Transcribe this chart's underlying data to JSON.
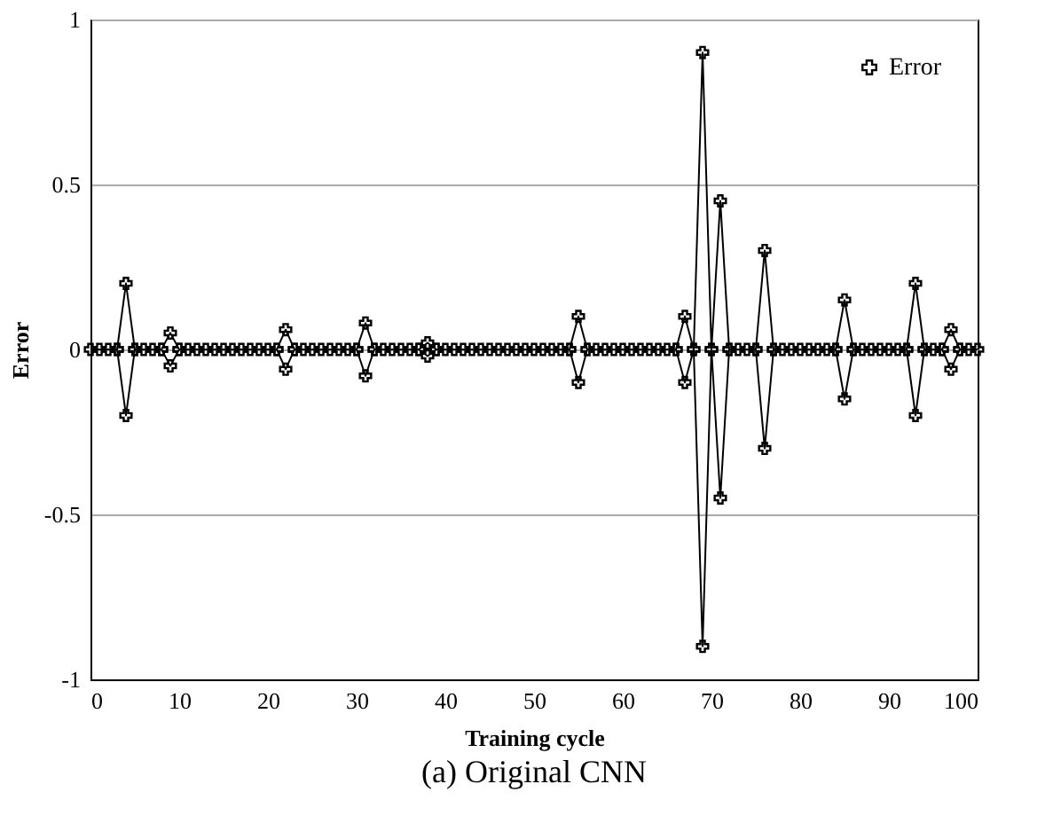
{
  "chart_data": {
    "type": "line",
    "title": "(a) Original CNN",
    "xlabel": "Training cycle",
    "ylabel": "Error",
    "x": [
      0,
      1,
      2,
      3,
      4,
      5,
      6,
      7,
      8,
      9,
      10,
      11,
      12,
      13,
      14,
      15,
      16,
      17,
      18,
      19,
      20,
      21,
      22,
      23,
      24,
      25,
      26,
      27,
      28,
      29,
      30,
      31,
      32,
      33,
      34,
      35,
      36,
      37,
      38,
      39,
      40,
      41,
      42,
      43,
      44,
      45,
      46,
      47,
      48,
      49,
      50,
      51,
      52,
      53,
      54,
      55,
      56,
      57,
      58,
      59,
      60,
      61,
      62,
      63,
      64,
      65,
      66,
      67,
      68,
      69,
      70,
      71,
      72,
      73,
      74,
      75,
      76,
      77,
      78,
      79,
      80,
      81,
      82,
      83,
      84,
      85,
      86,
      87,
      88,
      89,
      90,
      91,
      92,
      93,
      94,
      95,
      96,
      97,
      98,
      99,
      100
    ],
    "series": [
      {
        "name": "Error",
        "color": "#000000",
        "values": [
          0,
          0,
          0,
          0,
          0.2,
          0,
          0,
          0,
          0,
          0.05,
          0,
          0,
          0,
          0,
          0,
          0,
          0,
          0,
          0,
          0,
          0,
          0,
          0.06,
          0,
          0,
          0,
          0,
          0,
          0,
          0,
          0,
          0.08,
          0,
          0,
          0,
          0,
          0,
          0,
          0.02,
          0,
          0,
          0,
          0,
          0,
          0,
          0,
          0,
          0,
          0,
          0,
          0,
          0,
          0,
          0,
          0,
          0.1,
          0,
          0,
          0,
          0,
          0,
          0,
          0,
          0,
          0,
          0,
          0,
          0.1,
          0,
          0.9,
          0,
          0.45,
          0,
          0,
          0,
          0,
          0.3,
          0,
          0,
          0,
          0,
          0,
          0,
          0,
          0,
          0.15,
          0,
          0,
          0,
          0,
          0,
          0,
          0,
          0.2,
          0,
          0,
          0,
          0.06,
          0,
          0,
          0
        ]
      },
      {
        "color": "#000000",
        "values": [
          null,
          null,
          null,
          0,
          -0.2,
          0,
          null,
          null,
          0,
          -0.05,
          0,
          null,
          null,
          null,
          null,
          null,
          null,
          null,
          null,
          null,
          null,
          0,
          -0.06,
          0,
          null,
          null,
          null,
          null,
          null,
          null,
          0,
          -0.08,
          0,
          null,
          null,
          null,
          null,
          0,
          -0.02,
          0,
          null,
          null,
          null,
          null,
          null,
          null,
          null,
          null,
          null,
          null,
          null,
          null,
          null,
          null,
          0,
          -0.1,
          0,
          null,
          null,
          null,
          null,
          null,
          null,
          null,
          null,
          null,
          0,
          -0.1,
          0,
          -0.9,
          0,
          -0.45,
          0,
          null,
          null,
          0,
          -0.3,
          0,
          null,
          null,
          null,
          null,
          null,
          null,
          0,
          -0.15,
          0,
          null,
          null,
          null,
          null,
          null,
          0,
          -0.2,
          0,
          null,
          0,
          -0.06,
          0,
          null,
          null
        ]
      }
    ],
    "xlim": [
      0,
      100
    ],
    "xticks": [
      0,
      10,
      20,
      30,
      40,
      50,
      60,
      70,
      80,
      90,
      100
    ],
    "ylim": [
      -1,
      1
    ],
    "yticks": [
      -1,
      -0.5,
      0,
      0.5,
      1
    ],
    "grid": "y",
    "legend": "top right",
    "marker": "cross"
  }
}
